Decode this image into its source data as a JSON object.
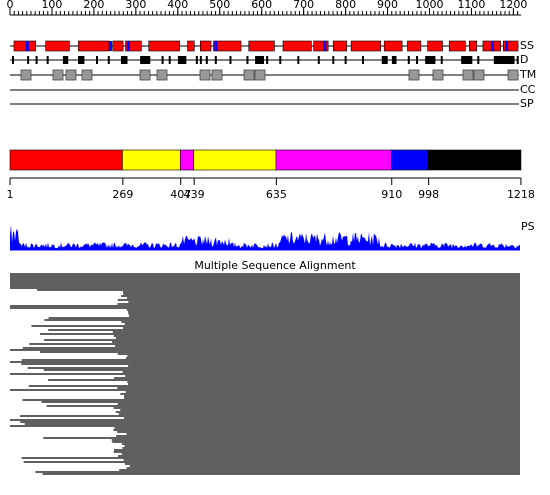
{
  "ruler": {
    "ticks": [
      0,
      100,
      200,
      300,
      400,
      500,
      600,
      700,
      800,
      900,
      1000,
      1100,
      1200
    ]
  },
  "tracks": [
    "SS",
    "D",
    "TM",
    "CC",
    "SP"
  ],
  "domains": {
    "boundaries": [
      1,
      269,
      407,
      439,
      635,
      910,
      998,
      1218
    ],
    "colors": [
      "#ff0000",
      "#ffff00",
      "#ff00ff",
      "#ffff00",
      "#ff00ff",
      "#0000ff",
      "#000000"
    ]
  },
  "profile_label": "PS",
  "alignment_title": "Multiple Sequence Alignment"
}
